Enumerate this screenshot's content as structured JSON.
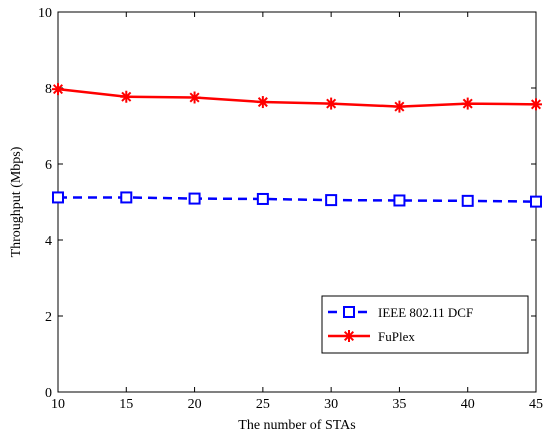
{
  "chart_data": {
    "type": "line",
    "title": "",
    "xlabel": "The number of STAs",
    "ylabel": "Throughput (Mbps)",
    "xlim": [
      10,
      45
    ],
    "ylim": [
      0,
      10
    ],
    "xticks": [
      "10",
      "15",
      "20",
      "25",
      "30",
      "35",
      "40",
      "45"
    ],
    "yticks": [
      "0",
      "2",
      "4",
      "6",
      "8",
      "10"
    ],
    "x": [
      10,
      15,
      20,
      25,
      30,
      35,
      40,
      45
    ],
    "grid": false,
    "legend_position": "bottom-right",
    "series": [
      {
        "name": "IEEE 802.11 DCF",
        "color": "#0000ff",
        "line_style": "dashed",
        "marker": "square",
        "values": [
          5.12,
          5.12,
          5.09,
          5.08,
          5.05,
          5.04,
          5.03,
          5.01
        ]
      },
      {
        "name": "FuPlex",
        "color": "#ff0000",
        "line_style": "solid",
        "marker": "star",
        "values": [
          7.97,
          7.77,
          7.75,
          7.63,
          7.59,
          7.51,
          7.59,
          7.57
        ]
      }
    ]
  }
}
